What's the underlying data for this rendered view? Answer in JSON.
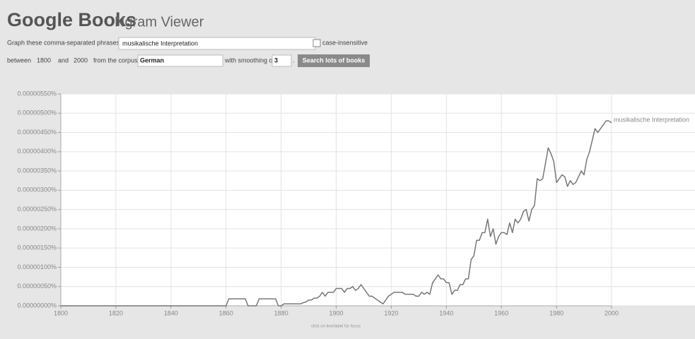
{
  "header": {
    "brand": "Google Books",
    "product": "Ngram Viewer"
  },
  "form": {
    "phrases_label": "Graph these comma-separated phrases:",
    "phrases_value": "musikalische Interpretation",
    "case_label": "case-insensitive",
    "between": "between",
    "start_year": "1800",
    "and": "and",
    "end_year": "2000",
    "corpus_label": "from the corpus",
    "corpus_value": "German",
    "smoothing_label": "with smoothing of",
    "smoothing_value": "3",
    "period": ".",
    "button": "Search lots of books"
  },
  "hint": "click on line/label for focus",
  "chart_data": {
    "type": "line",
    "xlim": [
      1800,
      2000
    ],
    "xticks": [
      1800,
      1820,
      1840,
      1860,
      1880,
      1900,
      1920,
      1940,
      1960,
      1980,
      2000
    ],
    "ylim": [
      0,
      5.5e-06
    ],
    "yticks": [
      {
        "value": 0,
        "label": "0.00000000%"
      },
      {
        "value": 5e-07,
        "label": "0.00000050%"
      },
      {
        "value": 1e-06,
        "label": "0.00000100%"
      },
      {
        "value": 1.5e-06,
        "label": "0.00000150%"
      },
      {
        "value": 2e-06,
        "label": "0.00000200%"
      },
      {
        "value": 2.5e-06,
        "label": "0.00000250%"
      },
      {
        "value": 3e-06,
        "label": "0.00000300%"
      },
      {
        "value": 3.5e-06,
        "label": "0.00000350%"
      },
      {
        "value": 4e-06,
        "label": "0.00000400%"
      },
      {
        "value": 4.5e-06,
        "label": "0.00000450%"
      },
      {
        "value": 5e-06,
        "label": "0.00000500%"
      },
      {
        "value": 5.5e-06,
        "label": "0.00000550%"
      }
    ],
    "grid": true,
    "x": [
      1800,
      1860,
      1861,
      1862,
      1863,
      1864,
      1865,
      1866,
      1867,
      1868,
      1869,
      1870,
      1871,
      1872,
      1873,
      1874,
      1875,
      1876,
      1877,
      1878,
      1879,
      1880,
      1881,
      1882,
      1883,
      1884,
      1885,
      1886,
      1887,
      1888,
      1889,
      1890,
      1891,
      1892,
      1893,
      1894,
      1895,
      1896,
      1897,
      1898,
      1899,
      1900,
      1901,
      1902,
      1903,
      1904,
      1905,
      1906,
      1907,
      1908,
      1909,
      1910,
      1911,
      1912,
      1913,
      1914,
      1915,
      1916,
      1917,
      1918,
      1919,
      1920,
      1921,
      1922,
      1923,
      1924,
      1925,
      1926,
      1927,
      1928,
      1929,
      1930,
      1931,
      1932,
      1933,
      1934,
      1935,
      1936,
      1937,
      1938,
      1939,
      1940,
      1941,
      1942,
      1943,
      1944,
      1945,
      1946,
      1947,
      1948,
      1949,
      1950,
      1951,
      1952,
      1953,
      1954,
      1955,
      1956,
      1957,
      1958,
      1959,
      1960,
      1961,
      1962,
      1963,
      1964,
      1965,
      1966,
      1967,
      1968,
      1969,
      1970,
      1971,
      1972,
      1973,
      1974,
      1975,
      1976,
      1977,
      1978,
      1979,
      1980,
      1981,
      1982,
      1983,
      1984,
      1985,
      1986,
      1987,
      1988,
      1989,
      1990,
      1991,
      1992,
      1993,
      1994,
      1995,
      1996,
      1997,
      1998,
      1999,
      2000
    ],
    "series": [
      {
        "name": "musikalische Interpretation",
        "color": "#777777",
        "values": [
          0,
          0,
          1.8e-07,
          1.8e-07,
          1.8e-07,
          1.8e-07,
          1.8e-07,
          1.8e-07,
          1.8e-07,
          0,
          0,
          0,
          0,
          1.8e-07,
          1.8e-07,
          1.8e-07,
          1.8e-07,
          1.8e-07,
          1.8e-07,
          1.8e-07,
          0,
          0,
          5e-08,
          5e-08,
          5e-08,
          5e-08,
          5e-08,
          5e-08,
          5e-08,
          8e-08,
          1e-07,
          1.5e-07,
          1.5e-07,
          2e-07,
          2e-07,
          2.5e-07,
          3.5e-07,
          2.5e-07,
          3.5e-07,
          3.5e-07,
          3.5e-07,
          4.5e-07,
          4.5e-07,
          4.5e-07,
          3.5e-07,
          4.5e-07,
          4.5e-07,
          5e-07,
          4e-07,
          4.5e-07,
          5.5e-07,
          4.5e-07,
          3.5e-07,
          2.5e-07,
          2.5e-07,
          2e-07,
          1.5e-07,
          1e-07,
          5e-08,
          1.5e-07,
          2.5e-07,
          3e-07,
          3.5e-07,
          3.5e-07,
          3.5e-07,
          3.5e-07,
          3e-07,
          3e-07,
          3e-07,
          3e-07,
          2.5e-07,
          2.5e-07,
          3.5e-07,
          3e-07,
          3.5e-07,
          3e-07,
          6e-07,
          7e-07,
          8e-07,
          7e-07,
          7e-07,
          6e-07,
          6e-07,
          3e-07,
          4e-07,
          4e-07,
          5.5e-07,
          5.5e-07,
          7e-07,
          7e-07,
          1.2e-06,
          1.3e-06,
          1.7e-06,
          1.7e-06,
          1.9e-06,
          1.9e-06,
          2.25e-06,
          1.8e-06,
          2e-06,
          1.6e-06,
          1.8e-06,
          1.9e-06,
          1.9e-06,
          1.85e-06,
          2.15e-06,
          1.9e-06,
          2.25e-06,
          2.15e-06,
          2.25e-06,
          2.45e-06,
          2.5e-06,
          2.2e-06,
          2.5e-06,
          2.6e-06,
          3.3e-06,
          3.25e-06,
          3.3e-06,
          3.7e-06,
          4.1e-06,
          3.95e-06,
          3.75e-06,
          3.2e-06,
          3.3e-06,
          3.4e-06,
          3.35e-06,
          3.1e-06,
          3.25e-06,
          3.15e-06,
          3.2e-06,
          3.35e-06,
          3.5e-06,
          3.4e-06,
          3.8e-06,
          4e-06,
          4.3e-06,
          4.6e-06,
          4.5e-06,
          4.6e-06,
          4.7e-06,
          4.8e-06,
          4.8e-06,
          4.75e-06
        ]
      }
    ]
  }
}
